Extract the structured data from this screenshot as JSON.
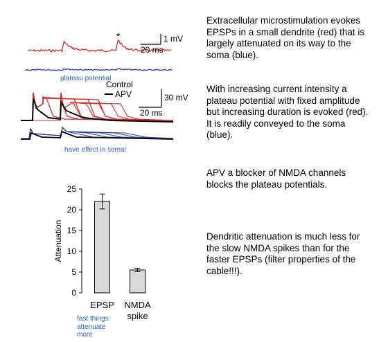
{
  "traces": {
    "star": "*",
    "scale1": {
      "amplitude": "1 mV",
      "time": "20 ms"
    },
    "plateau_label": "plateau potential",
    "control_label": "Control",
    "apv_label": "APV",
    "scale2": {
      "amplitude": "30 mV",
      "time": "20 ms"
    },
    "soma_note": "have effect in soma!",
    "colors": {
      "dendrite": "#d42a2a",
      "soma": "#2b3da8",
      "control": "#000000"
    }
  },
  "chart_data": {
    "type": "bar",
    "categories": [
      "EPSP",
      "NMDA spike"
    ],
    "category_lines": [
      [
        "EPSP"
      ],
      [
        "NMDA",
        "spike"
      ]
    ],
    "values": [
      22,
      5.5
    ],
    "errors": [
      1.8,
      0.4
    ],
    "ylabel": "Attenuation",
    "ylim": [
      0,
      25
    ],
    "yticks": [
      0,
      5,
      10,
      15,
      20,
      25
    ],
    "bar_color": "#d9d9d9"
  },
  "chart_note": [
    "fast things",
    "attenuate",
    "more"
  ],
  "text": {
    "p1": "Extracellular microstimulation evokes EPSPs in a small dendrite (red) that is largely attenuated on its way to the soma (blue).",
    "p2": "With increasing current intensity a plateau potential with fixed amplitude but increasing duration is evoked (red). It is readily conveyed  to the soma (blue).",
    "p3": "APV a blocker of NMDA channels blocks the plateau potentials.",
    "p4": "Dendritic attenuation is much less for the slow NMDA spikes than for the faster EPSPs (filter properties of the cable!!!)."
  }
}
